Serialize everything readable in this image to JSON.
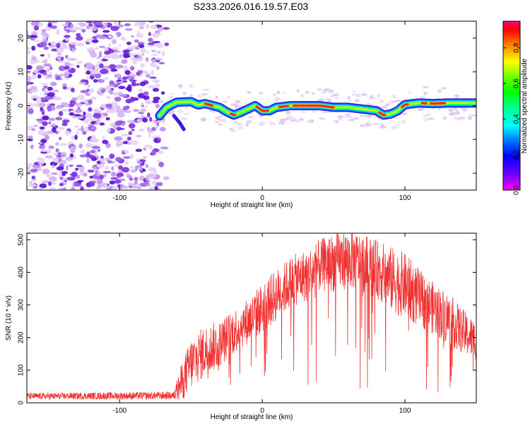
{
  "title": "S233.2026.016.19.57.E03",
  "chart_data": [
    {
      "type": "heatmap",
      "name": "spectrogram",
      "xlabel": "Height of straight line (km)",
      "ylabel": "Frequency (Hz)",
      "xlim": [
        -165,
        150
      ],
      "ylim": [
        -25,
        25
      ],
      "xticks": [
        -100,
        0,
        100
      ],
      "yticks": [
        -20,
        -10,
        0,
        10,
        20
      ],
      "noise_region_x": [
        -165,
        -67
      ],
      "ridge": {
        "x": [
          -72,
          -67,
          -60,
          -50,
          -45,
          -40,
          -30,
          -25,
          -20,
          -15,
          -10,
          -5,
          0,
          5,
          10,
          20,
          40,
          50,
          60,
          70,
          80,
          85,
          90,
          95,
          100,
          110,
          120,
          130,
          140,
          150
        ],
        "freq": [
          -3,
          -0.5,
          1.0,
          1.2,
          0.2,
          0.6,
          -0.5,
          -1.8,
          -2.8,
          -2.0,
          -1.0,
          0,
          -1.5,
          -1.5,
          -0.5,
          0.0,
          0.0,
          -0.5,
          -0.5,
          -1.0,
          -1.5,
          -2.8,
          -2.5,
          -1.5,
          0.3,
          0.8,
          0.6,
          0.8,
          0.8,
          0.8
        ]
      },
      "colorbar": {
        "label": "Normalized spectral amplitude",
        "ticks": [
          "0.0",
          "0.2",
          "0.4",
          "0.6",
          "0.8"
        ],
        "range": [
          0,
          0.95
        ]
      }
    },
    {
      "type": "line",
      "name": "snr",
      "xlabel": "Height of straight line (km)",
      "ylabel": "SNR (10 * v/v)",
      "xlim": [
        -165,
        150
      ],
      "ylim": [
        0,
        520
      ],
      "xticks": [
        -100,
        0,
        100
      ],
      "yticks": [
        0,
        100,
        200,
        300,
        400,
        500
      ],
      "color": "#f03232",
      "envelope": {
        "x": [
          -165,
          -62,
          -58,
          -50,
          -40,
          -30,
          -20,
          -10,
          0,
          10,
          20,
          30,
          40,
          50,
          60,
          70,
          80,
          90,
          100,
          110,
          120,
          130,
          140,
          150
        ],
        "median": [
          20,
          22,
          50,
          120,
          160,
          180,
          220,
          250,
          290,
          330,
          370,
          390,
          420,
          430,
          440,
          430,
          410,
          380,
          360,
          320,
          290,
          260,
          220,
          190
        ],
        "spread": [
          10,
          12,
          50,
          80,
          80,
          70,
          70,
          70,
          80,
          80,
          80,
          80,
          80,
          90,
          90,
          90,
          90,
          100,
          100,
          90,
          80,
          80,
          70,
          60
        ]
      }
    }
  ]
}
